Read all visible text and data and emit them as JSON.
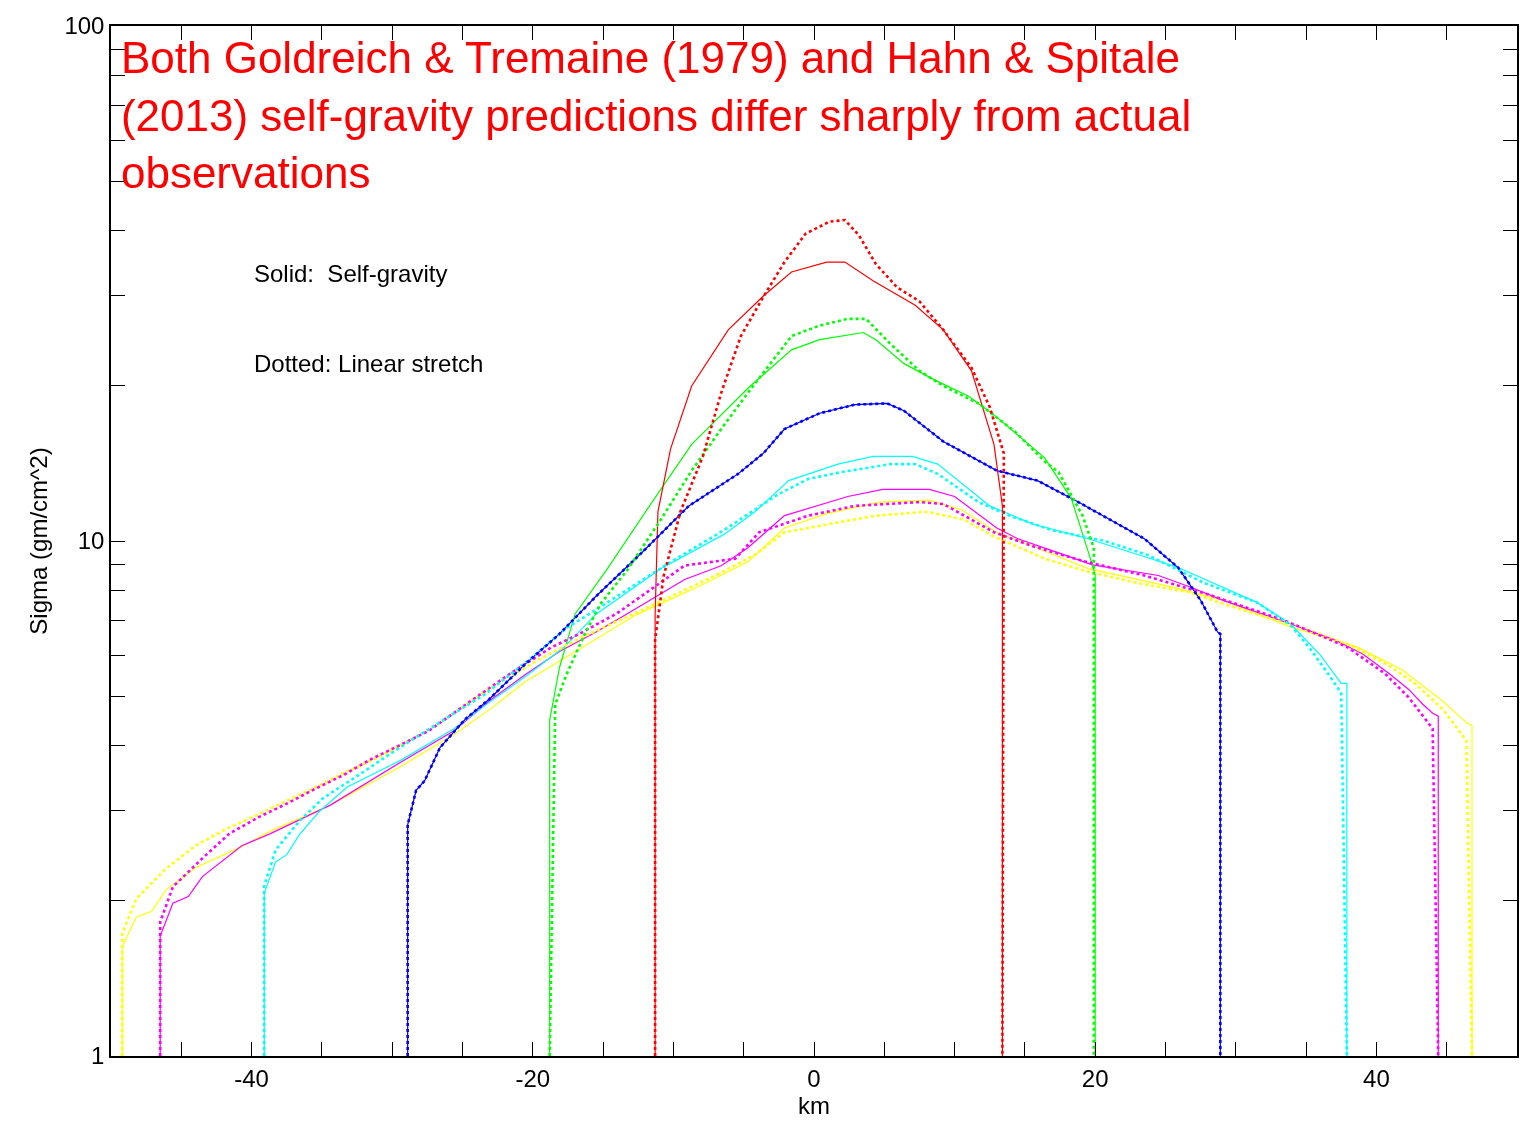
{
  "chart_data": {
    "type": "line",
    "title": "Both Goldreich & Tremaine (1979) and Hahn & Spitale\n(2013) self-gravity predictions differ sharply from actual\nobservations",
    "xlabel": "km",
    "ylabel": "Sigma (gm/cm^2)",
    "annotations": [
      "Solid:  Self-gravity",
      "Dotted: Linear stretch"
    ],
    "log": "y",
    "marker": "none",
    "xlim": [
      -50,
      50
    ],
    "xticks": [
      {
        "value": -50,
        "label": null
      },
      {
        "value": -45,
        "label": null
      },
      -40,
      {
        "value": -35,
        "label": null
      },
      {
        "value": -30,
        "label": null
      },
      {
        "value": -25,
        "label": null
      },
      -20,
      {
        "value": -15,
        "label": null
      },
      {
        "value": -10,
        "label": null
      },
      {
        "value": -5,
        "label": null
      },
      0,
      {
        "value": 5,
        "label": null
      },
      {
        "value": 10,
        "label": null
      },
      {
        "value": 15,
        "label": null
      },
      20,
      {
        "value": 25,
        "label": null
      },
      {
        "value": 30,
        "label": null
      },
      {
        "value": 35,
        "label": null
      },
      40,
      {
        "value": 45,
        "label": null
      }
    ],
    "ylim": [
      1,
      100
    ],
    "yticks": [
      1,
      {
        "value": 2,
        "label": null
      },
      {
        "value": 3,
        "label": null
      },
      {
        "value": 4,
        "label": null
      },
      {
        "value": 5,
        "label": null
      },
      {
        "value": 6,
        "label": null
      },
      {
        "value": 7,
        "label": null
      },
      {
        "value": 8,
        "label": null
      },
      {
        "value": 9,
        "label": null
      },
      10,
      {
        "value": 20,
        "label": null
      },
      {
        "value": 30,
        "label": null
      },
      {
        "value": 40,
        "label": null
      },
      {
        "value": 50,
        "label": null
      },
      {
        "value": 60,
        "label": null
      },
      {
        "value": 70,
        "label": null
      },
      {
        "value": 80,
        "label": null
      },
      {
        "value": 90,
        "label": null
      },
      100
    ],
    "series": [
      {
        "color": "#ffff00",
        "line_style": "solid",
        "x": [
          -49.2,
          -49.2,
          -48.2,
          -47.1,
          -46.1,
          -44.0,
          -40.7,
          -38.7,
          -34.4,
          -29.4,
          -25.6,
          -23.1,
          -20.5,
          -18.6,
          -15.5,
          -12.7,
          -8.2,
          -4.7,
          -2.1,
          0.9,
          4.7,
          8.2,
          10.5,
          13.0,
          15.5,
          19.5,
          25.6,
          29.1,
          33.9,
          38.6,
          41.8,
          44.7,
          46.4,
          46.8,
          46.8
        ],
        "values": [
          1,
          1.63,
          1.86,
          1.91,
          2.1,
          2.32,
          2.55,
          2.73,
          3.07,
          3.65,
          4.21,
          4.7,
          5.34,
          5.73,
          6.45,
          7.18,
          8.16,
          9.11,
          10.6,
          11.3,
          11.9,
          12.0,
          11.5,
          10.4,
          9.78,
          8.84,
          8.13,
          7.67,
          6.81,
          6.23,
          5.63,
          4.89,
          4.44,
          4.38,
          1
        ]
      },
      {
        "color": "#ff00ff",
        "line_style": "solid",
        "x": [
          -46.5,
          -46.5,
          -45.6,
          -44.5,
          -43.5,
          -40.7,
          -38.7,
          -34.4,
          -29.4,
          -25.6,
          -23.1,
          -20.5,
          -18.1,
          -15.5,
          -13.7,
          -9.2,
          -6.6,
          -4.7,
          -2.1,
          2.4,
          4.9,
          8.2,
          10.0,
          13.0,
          14.5,
          17.4,
          19.8,
          24.5,
          26.8,
          29.1,
          33.9,
          36.9,
          39.0,
          40.9,
          42.3,
          43.3,
          44.0,
          44.4,
          44.4
        ],
        "values": [
          1,
          1.71,
          1.98,
          2.04,
          2.23,
          2.56,
          2.7,
          3.07,
          3.72,
          4.28,
          4.89,
          5.51,
          6.1,
          6.66,
          7.11,
          8.42,
          8.95,
          9.7,
          11.2,
          12.2,
          12.6,
          12.6,
          12.2,
          10.6,
          10.1,
          9.48,
          8.99,
          8.57,
          8.13,
          7.67,
          6.9,
          6.45,
          6.04,
          5.53,
          5.15,
          4.82,
          4.63,
          4.57,
          1
        ]
      },
      {
        "color": "#00ffff",
        "line_style": "solid",
        "x": [
          -39.1,
          -39.1,
          -38.3,
          -37.5,
          -36.6,
          -35.2,
          -33.2,
          -29.4,
          -25.6,
          -23.1,
          -20.5,
          -17.8,
          -15.5,
          -10.9,
          -6.4,
          -4.2,
          -1.8,
          1.7,
          4.2,
          7.0,
          8.8,
          12.5,
          15.5,
          19.5,
          23.8,
          25.9,
          31.5,
          33.9,
          36.0,
          37.5,
          37.9,
          37.9
        ],
        "values": [
          1,
          2.07,
          2.38,
          2.46,
          2.69,
          2.98,
          3.33,
          3.75,
          4.32,
          4.86,
          5.46,
          6.21,
          7.21,
          8.83,
          10.3,
          11.4,
          13.1,
          14.1,
          14.6,
          14.6,
          14.1,
          11.7,
          10.8,
          10.1,
          9.27,
          8.88,
          7.6,
          6.9,
          6.01,
          5.29,
          5.29,
          1
        ]
      },
      {
        "color": "#0000ff",
        "line_style": "solid",
        "x": [
          -28.9,
          -28.9,
          -28.3,
          -27.7,
          -26.6,
          -24.8,
          -23.1,
          -20.5,
          -18.1,
          -15.5,
          -12.2,
          -8.9,
          -5.4,
          -3.6,
          -2.1,
          0.4,
          2.9,
          5.2,
          6.4,
          9.2,
          13.0,
          15.9,
          18.8,
          23.5,
          25.9,
          27.5,
          28.7,
          28.9,
          28.9
        ],
        "values": [
          1,
          2.81,
          3.28,
          3.42,
          3.97,
          4.51,
          4.93,
          5.78,
          6.6,
          7.81,
          9.52,
          11.7,
          13.5,
          14.8,
          16.5,
          17.7,
          18.4,
          18.5,
          17.9,
          15.6,
          13.7,
          13.1,
          11.9,
          10.1,
          8.88,
          7.67,
          6.66,
          6.6,
          1
        ]
      },
      {
        "color": "#00ff00",
        "line_style": "solid",
        "x": [
          -18.8,
          -18.8,
          -18.1,
          -17.0,
          -14.7,
          -11.7,
          -8.7,
          -4.7,
          -1.6,
          0.4,
          3.5,
          4.4,
          6.4,
          8.5,
          11.0,
          13.0,
          16.4,
          18.3,
          19.8,
          20.0,
          20.0
        ],
        "values": [
          1,
          4.49,
          5.68,
          7.21,
          8.83,
          11.7,
          15.4,
          19.8,
          23.5,
          24.6,
          25.4,
          24.6,
          22.1,
          20.6,
          19.1,
          17.4,
          14.5,
          12.1,
          8.99,
          8.6,
          1
        ]
      },
      {
        "color": "#ff0000",
        "line_style": "solid",
        "x": [
          -11.3,
          -11.3,
          -11.1,
          -10.2,
          -8.7,
          -6.1,
          -3.6,
          -1.6,
          0.9,
          2.2,
          4.2,
          7.2,
          9.2,
          11.2,
          12.8,
          13.4,
          13.4
        ],
        "values": [
          1,
          7.18,
          11.4,
          15.1,
          20.0,
          25.7,
          29.9,
          33.3,
          34.8,
          34.8,
          32.0,
          28.7,
          25.7,
          21.4,
          15.4,
          11.7,
          1
        ]
      },
      {
        "color": "#ffff00",
        "line_style": "dotted",
        "x": [
          -49.2,
          -49.2,
          -48.2,
          -46.1,
          -44.0,
          -41.8,
          -39.7,
          -37.5,
          -35.3,
          -33.2,
          -31.0,
          -28.9,
          -26.8,
          -24.7,
          -22.6,
          -19.6,
          -16.6,
          -12.4,
          -9.7,
          -6.6,
          -4.2,
          -2.1,
          0.4,
          4.4,
          8.0,
          10.7,
          12.8,
          14.5,
          16.4,
          19.2,
          22.9,
          26.7,
          30.5,
          34.2,
          38.0,
          40.9,
          42.8,
          44.7,
          46.4,
          46.8
        ],
        "values": [
          1,
          1.73,
          2.02,
          2.31,
          2.56,
          2.76,
          2.93,
          3.13,
          3.34,
          3.57,
          3.8,
          4.08,
          4.4,
          4.82,
          5.27,
          5.88,
          6.48,
          7.31,
          7.91,
          8.68,
          9.4,
          10.4,
          10.7,
          11.2,
          11.4,
          11.0,
          10.2,
          9.74,
          9.24,
          8.76,
          8.3,
          7.95,
          7.34,
          6.87,
          6.29,
          5.73,
          5.27,
          4.72,
          4.1,
          1
        ]
      },
      {
        "color": "#ff00ff",
        "line_style": "dotted",
        "x": [
          -46.5,
          -46.5,
          -45.6,
          -43.5,
          -41.6,
          -39.5,
          -37.5,
          -35.5,
          -33.4,
          -31.5,
          -29.4,
          -27.4,
          -24.5,
          -21.6,
          -18.7,
          -16.7,
          -14.0,
          -9.2,
          -5.6,
          -3.9,
          -0.4,
          2.9,
          7.5,
          9.2,
          12.8,
          15.5,
          19.1,
          23.5,
          28.0,
          33.4,
          37.9,
          40.6,
          42.3,
          44.0,
          44.4
        ],
        "values": [
          1,
          1.82,
          2.13,
          2.42,
          2.7,
          2.91,
          3.09,
          3.3,
          3.52,
          3.77,
          4.02,
          4.28,
          4.87,
          5.53,
          6.21,
          6.6,
          7.24,
          8.96,
          9.24,
          10.4,
          11.2,
          11.7,
          11.9,
          11.8,
          10.4,
          9.78,
          9.15,
          8.57,
          7.88,
          7.02,
          6.23,
          5.53,
          4.97,
          4.32,
          1
        ]
      },
      {
        "color": "#00ffff",
        "line_style": "dotted",
        "x": [
          -39.1,
          -39.1,
          -38.3,
          -36.6,
          -34.9,
          -32.4,
          -29.9,
          -26.6,
          -23.4,
          -20.0,
          -17.6,
          -15.9,
          -10.4,
          -6.4,
          -2.6,
          -0.4,
          1.9,
          5.4,
          7.2,
          8.8,
          11.7,
          13.9,
          16.9,
          20.7,
          23.8,
          27.7,
          31.5,
          33.9,
          35.3,
          36.8,
          37.5,
          37.9
        ],
        "values": [
          1,
          2.14,
          2.51,
          2.86,
          3.17,
          3.51,
          3.9,
          4.45,
          5.04,
          5.96,
          6.78,
          7.24,
          9.03,
          10.5,
          12.3,
          13.2,
          13.6,
          14.1,
          14.1,
          13.5,
          11.9,
          11.2,
          10.5,
          10.0,
          9.38,
          8.3,
          7.6,
          6.87,
          6.17,
          5.41,
          5.06,
          1
        ]
      },
      {
        "color": "#0000ff",
        "line_style": "dotted",
        "x": [
          -28.9,
          -28.9,
          -28.3,
          -27.7,
          -26.6,
          -24.8,
          -23.1,
          -20.5,
          -18.1,
          -15.5,
          -12.2,
          -8.9,
          -5.4,
          -3.6,
          -2.1,
          0.4,
          2.9,
          5.2,
          6.4,
          9.2,
          13.0,
          15.9,
          18.8,
          23.5,
          25.9,
          27.5,
          28.7,
          28.9,
          28.9
        ],
        "values": [
          1,
          2.81,
          3.28,
          3.42,
          3.97,
          4.51,
          4.93,
          5.78,
          6.6,
          7.81,
          9.52,
          11.7,
          13.5,
          14.8,
          16.5,
          17.7,
          18.4,
          18.5,
          17.9,
          15.6,
          13.7,
          13.1,
          11.9,
          10.1,
          8.88,
          7.67,
          6.66,
          6.6,
          1
        ]
      },
      {
        "color": "#00ff00",
        "line_style": "dotted",
        "x": [
          -18.8,
          -18.4,
          -17.6,
          -16.3,
          -15.2,
          -13.2,
          -10.9,
          -8.7,
          -6.6,
          -4.7,
          -1.6,
          0.4,
          2.4,
          3.7,
          5.4,
          7.5,
          9.2,
          11.7,
          14.3,
          16.5,
          17.4,
          19.1,
          19.9,
          19.9
        ],
        "values": [
          1,
          4.82,
          5.51,
          6.6,
          7.54,
          8.84,
          11.0,
          13.7,
          16.5,
          19.4,
          25.0,
          26.2,
          27.0,
          27.0,
          24.2,
          21.4,
          20.0,
          18.5,
          16.3,
          14.2,
          13.6,
          11.2,
          9.7,
          1
        ]
      },
      {
        "color": "#ff0000",
        "line_style": "dotted",
        "x": [
          -11.3,
          -11.3,
          -10.7,
          -9.5,
          -7.9,
          -6.6,
          -5.2,
          -3.6,
          -2.1,
          -0.6,
          1.1,
          2.2,
          3.2,
          4.4,
          5.9,
          7.5,
          9.2,
          11.2,
          12.5,
          13.5,
          13.4
        ],
        "values": [
          1,
          6.43,
          8.53,
          11.4,
          14.6,
          19.4,
          25.0,
          29.8,
          34.8,
          39.5,
          41.7,
          42.0,
          39.2,
          34.5,
          31.1,
          29.2,
          25.7,
          21.7,
          18.2,
          14.8,
          1
        ]
      }
    ]
  }
}
